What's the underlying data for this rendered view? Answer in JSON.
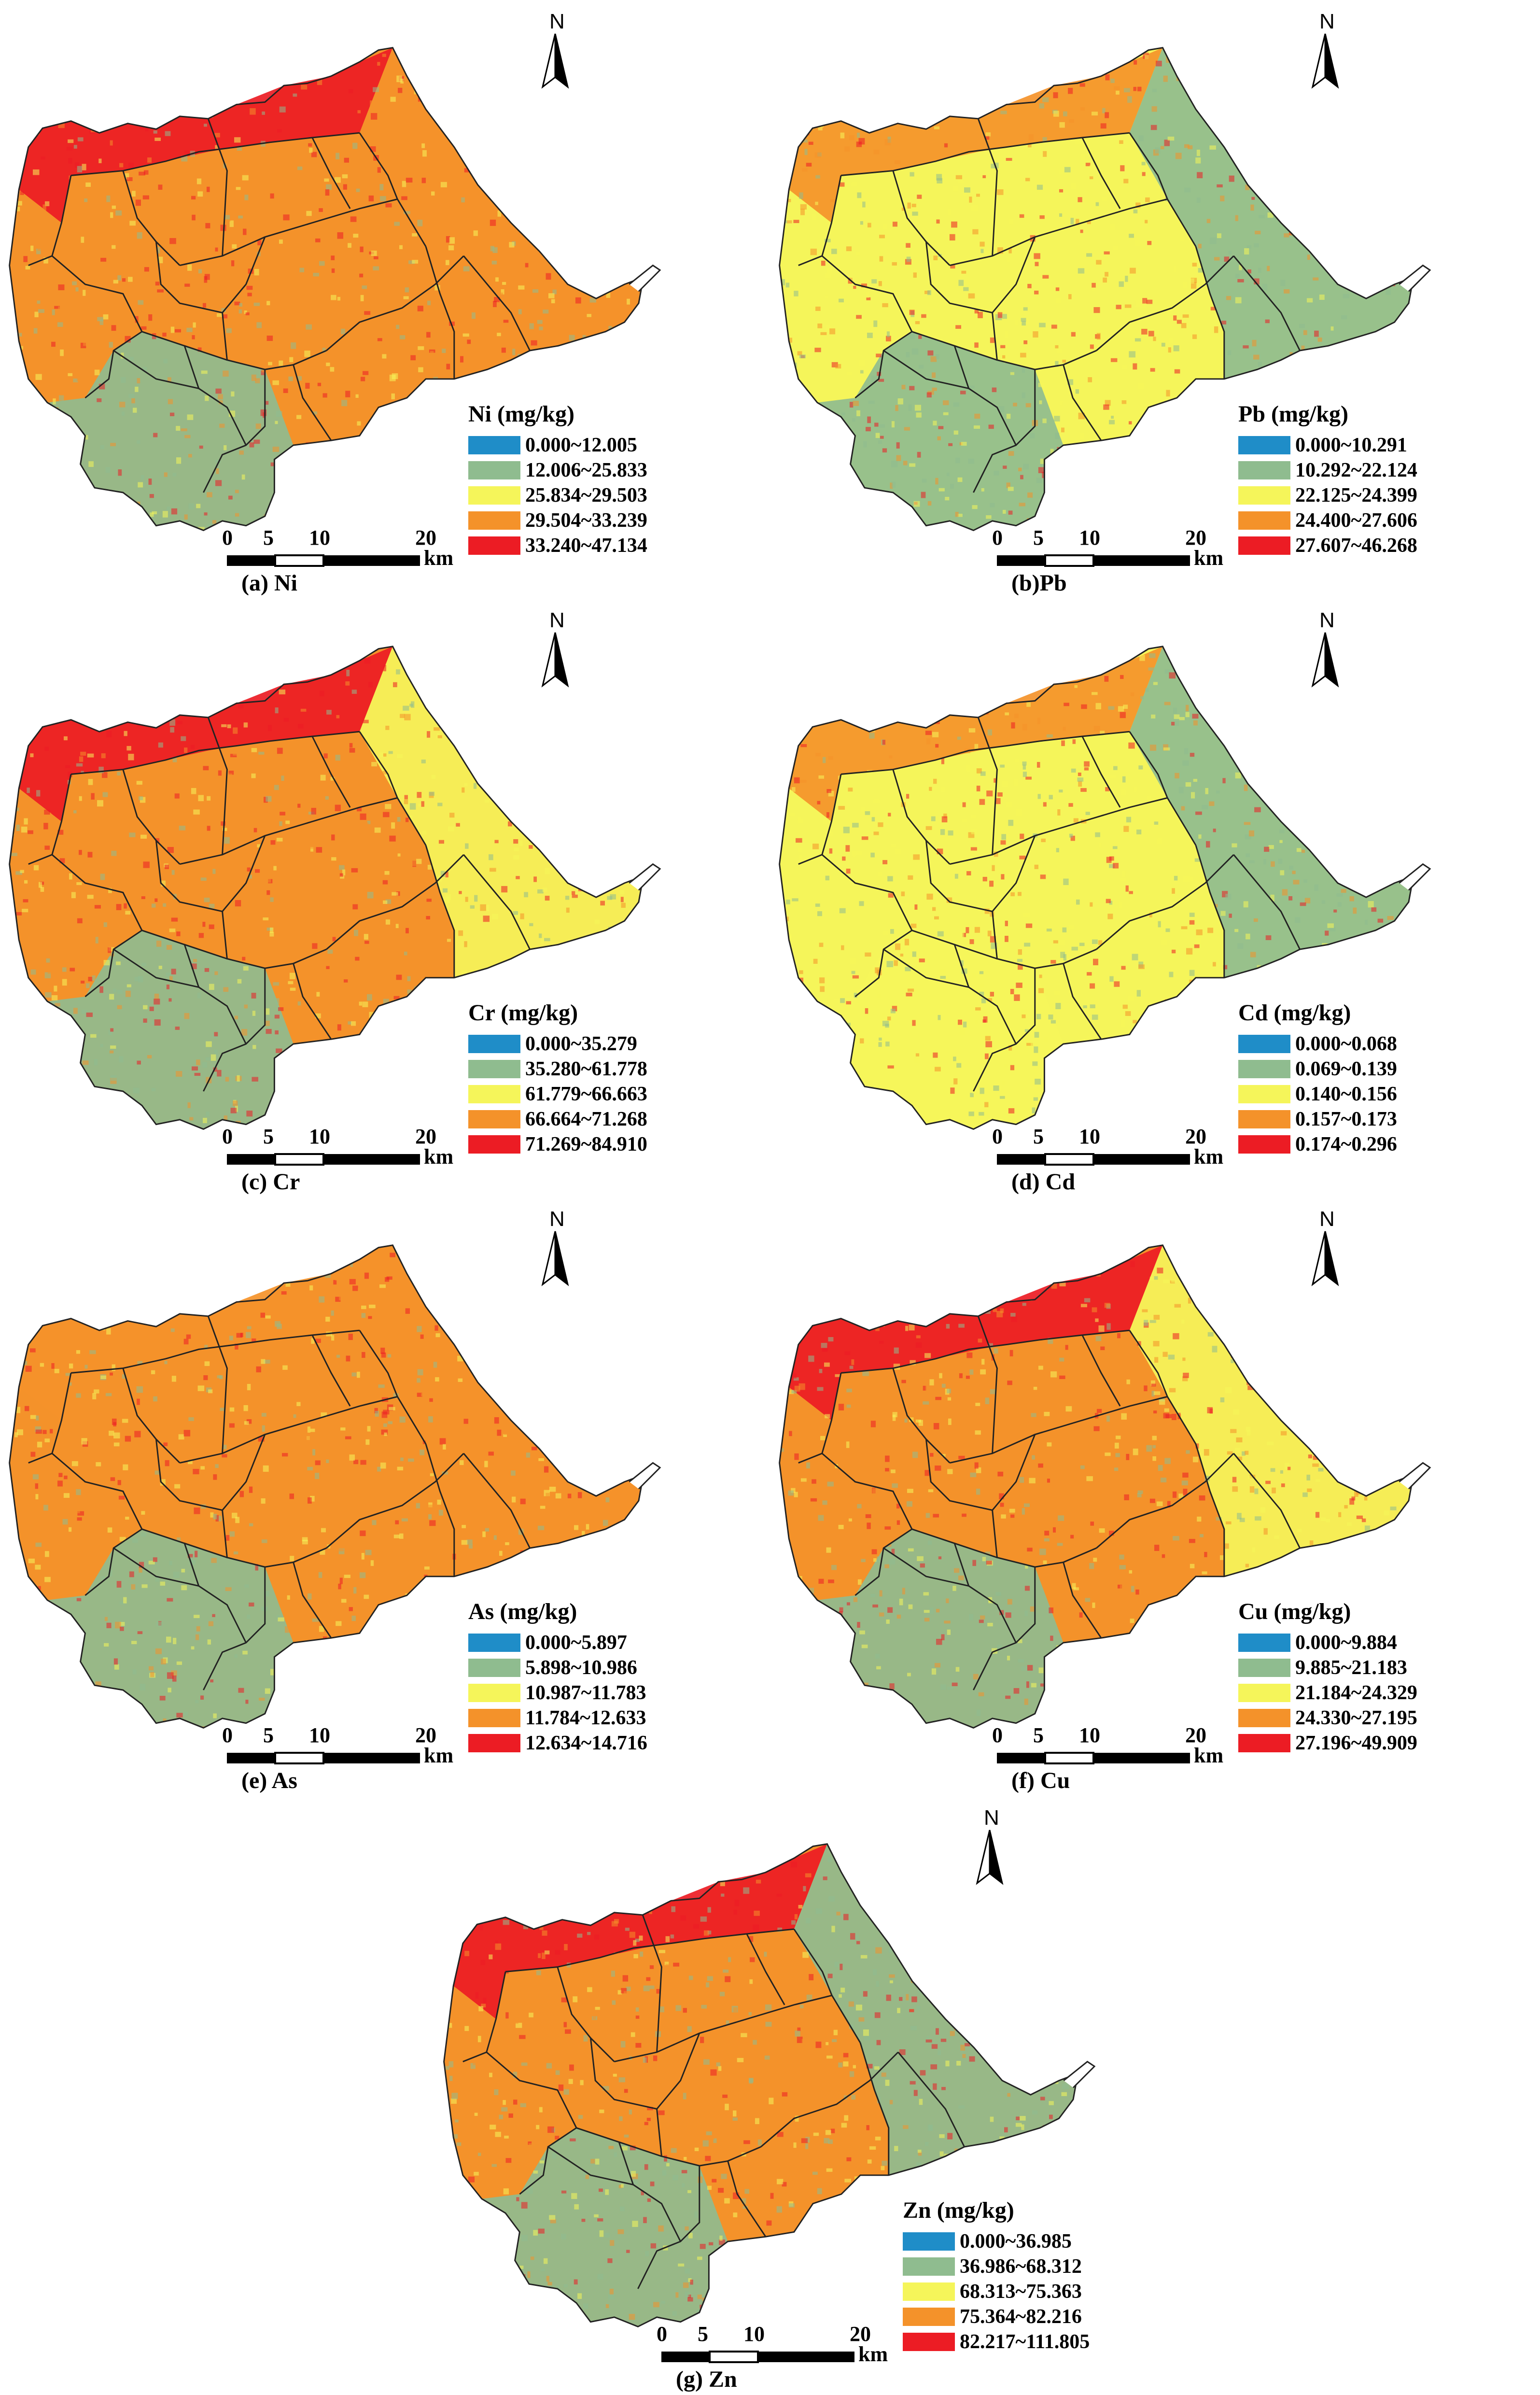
{
  "north_label": "N",
  "scale": {
    "ticks": [
      "0",
      "5",
      "10",
      "20"
    ],
    "unit": "km"
  },
  "colors": {
    "class1": "#1f8dc8",
    "class2": "#8fbc8f",
    "class3": "#f5f55a",
    "class4": "#f4922a",
    "class5": "#ec1c24"
  },
  "panels": [
    {
      "id": "ni",
      "caption": "(a) Ni",
      "legend_title": "Ni (mg/kg)",
      "classes": [
        "0.000~12.005",
        "12.006~25.833",
        "25.834~29.503",
        "29.504~33.239",
        "33.240~47.134"
      ],
      "dominant_zones": {
        "north": "class5",
        "central": "class4",
        "east": "class4",
        "south": "class2"
      }
    },
    {
      "id": "pb",
      "caption": "(b)Pb",
      "legend_title": "Pb (mg/kg)",
      "classes": [
        "0.000~10.291",
        "10.292~22.124",
        "22.125~24.399",
        "24.400~27.606",
        "27.607~46.268"
      ],
      "dominant_zones": {
        "north": "class4",
        "central": "class3",
        "east": "class2",
        "south": "class2"
      }
    },
    {
      "id": "cr",
      "caption": "(c) Cr",
      "legend_title": "Cr (mg/kg)",
      "classes": [
        "0.000~35.279",
        "35.280~61.778",
        "61.779~66.663",
        "66.664~71.268",
        "71.269~84.910"
      ],
      "dominant_zones": {
        "north": "class5",
        "central": "class4",
        "east": "class3",
        "south": "class2"
      }
    },
    {
      "id": "cd",
      "caption": "(d) Cd",
      "legend_title": "Cd (mg/kg)",
      "classes": [
        "0.000~0.068",
        "0.069~0.139",
        "0.140~0.156",
        "0.157~0.173",
        "0.174~0.296"
      ],
      "dominant_zones": {
        "north": "class4",
        "central": "class3",
        "east": "class2",
        "south": "class3"
      }
    },
    {
      "id": "as",
      "caption": "(e) As",
      "legend_title": "As (mg/kg)",
      "classes": [
        "0.000~5.897",
        "5.898~10.986",
        "10.987~11.783",
        "11.784~12.633",
        "12.634~14.716"
      ],
      "dominant_zones": {
        "north": "class4",
        "central": "class4",
        "east": "class4",
        "south": "class2"
      }
    },
    {
      "id": "cu",
      "caption": "(f) Cu",
      "legend_title": "Cu (mg/kg)",
      "classes": [
        "0.000~9.884",
        "9.885~21.183",
        "21.184~24.329",
        "24.330~27.195",
        "27.196~49.909"
      ],
      "dominant_zones": {
        "north": "class5",
        "central": "class4",
        "east": "class3",
        "south": "class2"
      }
    },
    {
      "id": "zn",
      "caption": "(g) Zn",
      "legend_title": "Zn (mg/kg)",
      "classes": [
        "0.000~36.985",
        "36.986~68.312",
        "68.313~75.363",
        "75.364~82.216",
        "82.217~111.805"
      ],
      "dominant_zones": {
        "north": "class5",
        "central": "class4",
        "east": "class2",
        "south": "class2"
      }
    }
  ]
}
